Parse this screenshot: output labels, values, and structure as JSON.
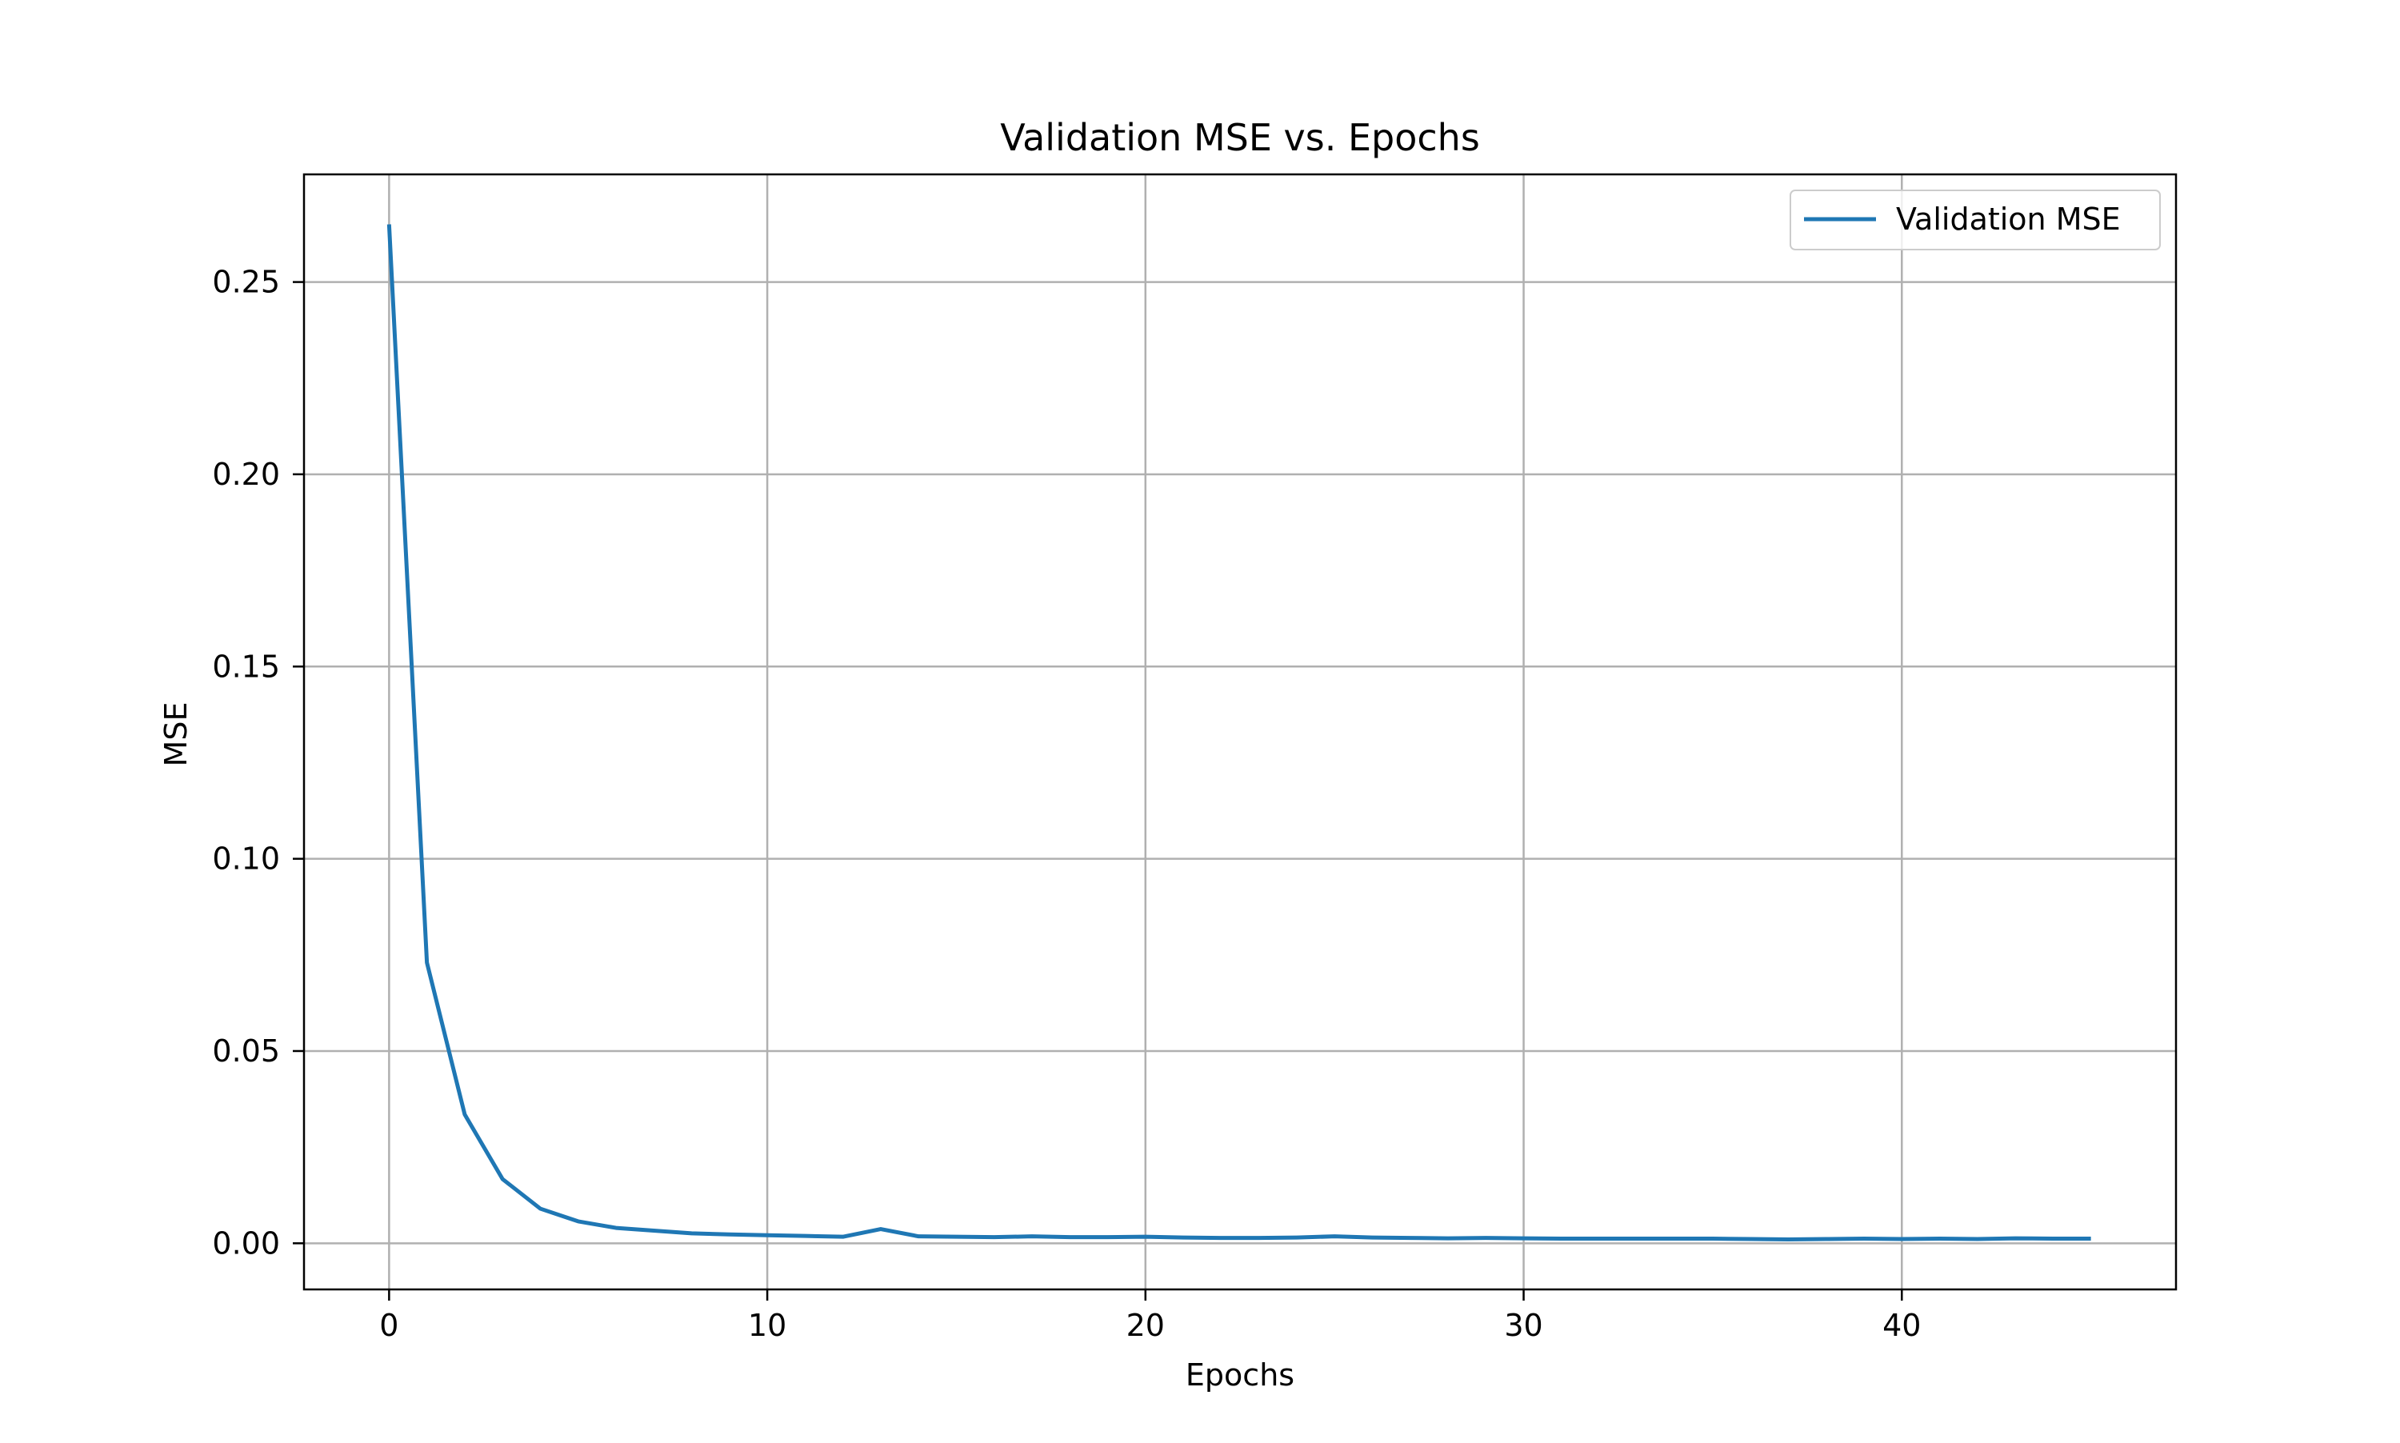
{
  "chart_data": {
    "type": "line",
    "title": "Validation MSE vs. Epochs",
    "xlabel": "Epochs",
    "ylabel": "MSE",
    "xlim": [
      -2.25,
      47.25
    ],
    "ylim": [
      -0.012,
      0.278
    ],
    "xticks": [
      0,
      10,
      20,
      30,
      40
    ],
    "yticks": [
      0.0,
      0.05,
      0.1,
      0.15,
      0.2,
      0.25
    ],
    "xtick_labels": [
      "0",
      "10",
      "20",
      "30",
      "40"
    ],
    "ytick_labels": [
      "0.00",
      "0.05",
      "0.10",
      "0.15",
      "0.20",
      "0.25"
    ],
    "grid": true,
    "legend_position": "top-right",
    "series": [
      {
        "name": "Validation MSE",
        "color": "#1f77b4",
        "x": [
          0,
          1,
          2,
          3,
          4,
          5,
          6,
          7,
          8,
          9,
          10,
          11,
          12,
          13,
          14,
          15,
          16,
          17,
          18,
          19,
          20,
          21,
          22,
          23,
          24,
          25,
          26,
          27,
          28,
          29,
          30,
          31,
          32,
          33,
          34,
          35,
          36,
          37,
          38,
          39,
          40,
          41,
          42,
          43,
          44,
          45
        ],
        "values": [
          0.265,
          0.073,
          0.0335,
          0.0167,
          0.009,
          0.0057,
          0.004,
          0.0033,
          0.0026,
          0.0023,
          0.0021,
          0.0019,
          0.0017,
          0.0037,
          0.0018,
          0.0017,
          0.0016,
          0.0018,
          0.0016,
          0.0016,
          0.0017,
          0.0015,
          0.0014,
          0.0014,
          0.0015,
          0.0018,
          0.0015,
          0.0014,
          0.0013,
          0.0014,
          0.0013,
          0.0012,
          0.0012,
          0.0012,
          0.0012,
          0.0012,
          0.0011,
          0.001,
          0.0011,
          0.0012,
          0.0011,
          0.0012,
          0.0011,
          0.0013,
          0.0012,
          0.0012
        ]
      }
    ]
  }
}
